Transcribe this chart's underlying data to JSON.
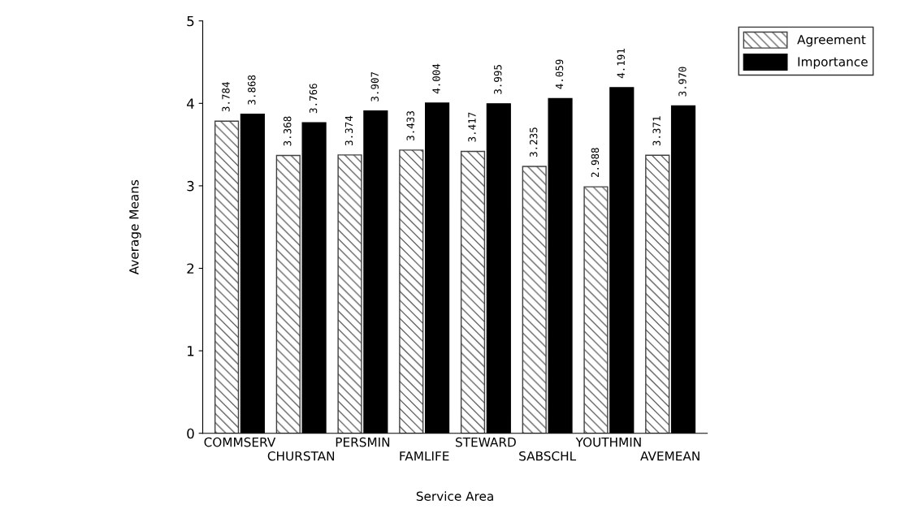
{
  "chart_data": {
    "type": "bar",
    "xlabel": "Service Area",
    "ylabel": "Average Means",
    "categories": [
      "COMMSERV",
      "CHURSTAN",
      "PERSMIN",
      "FAMLIFE",
      "STEWARD",
      "SABSCHL",
      "YOUTHMIN",
      "AVEMEAN"
    ],
    "series": [
      {
        "name": "Agreement",
        "color": "#404040",
        "values": [
          3.784,
          3.368,
          3.374,
          3.433,
          3.417,
          3.235,
          2.988,
          3.371
        ],
        "value_labels": [
          "3.784",
          "3.368",
          "3.374",
          "3.433",
          "3.417",
          "3.235",
          "2.988",
          "3.371"
        ]
      },
      {
        "name": "Importance",
        "color": "#000000",
        "values": [
          3.868,
          3.766,
          3.907,
          4.004,
          3.995,
          4.059,
          4.191,
          3.97
        ],
        "value_labels": [
          "3.868",
          "3.766",
          "3.907",
          "4.004",
          "3.995",
          "4.059",
          "4.191",
          "3.970"
        ]
      }
    ],
    "ylim": [
      0,
      5
    ],
    "yticks": [
      0,
      1,
      2,
      3,
      4,
      5
    ],
    "grid": false,
    "legend": "top right"
  }
}
